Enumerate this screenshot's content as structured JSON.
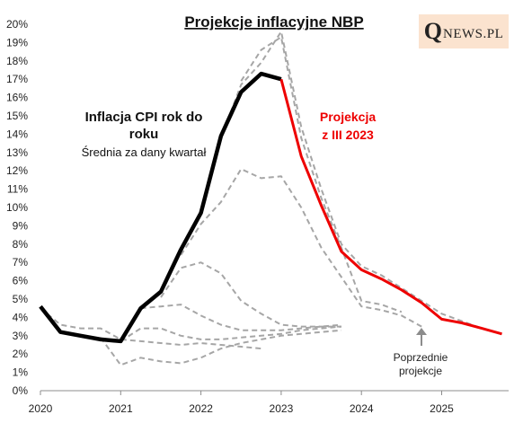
{
  "logo": {
    "q": "Q",
    "rest": "NEWS.PL"
  },
  "chart_data": {
    "type": "line",
    "title": "Projekcje inflacyjne NBP",
    "ylim": [
      0,
      20
    ],
    "xlim": [
      2020,
      2025.9
    ],
    "y_ticks": [
      "0%",
      "1%",
      "2%",
      "3%",
      "4%",
      "5%",
      "6%",
      "7%",
      "8%",
      "9%",
      "10%",
      "11%",
      "12%",
      "13%",
      "14%",
      "15%",
      "16%",
      "17%",
      "18%",
      "19%",
      "20%"
    ],
    "x_ticks": [
      "2020",
      "2021",
      "2022",
      "2023",
      "2024",
      "2025"
    ],
    "grid": false,
    "colors": {
      "actual": "#000000",
      "projection": "#ee0000",
      "previous": "#a6a6a6"
    },
    "annotations": {
      "actual_title": [
        "Inflacja CPI rok do",
        "roku"
      ],
      "actual_sub": "Średnia za dany kwartał",
      "projection_label": [
        "Projekcja",
        "z III 2023"
      ],
      "previous_label": [
        "Poprzednie",
        "projekcje"
      ]
    },
    "series": [
      {
        "name": "Inflacja CPI rok do roku",
        "style": "solid-black",
        "points": [
          [
            2020.0,
            4.6
          ],
          [
            2020.25,
            3.2
          ],
          [
            2020.5,
            3.0
          ],
          [
            2020.75,
            2.8
          ],
          [
            2021.0,
            2.7
          ],
          [
            2021.25,
            4.5
          ],
          [
            2021.5,
            5.4
          ],
          [
            2021.75,
            7.7
          ],
          [
            2022.0,
            9.7
          ],
          [
            2022.25,
            13.9
          ],
          [
            2022.5,
            16.3
          ],
          [
            2022.75,
            17.3
          ],
          [
            2023.0,
            17.0
          ]
        ]
      },
      {
        "name": "Projekcja z III 2023",
        "style": "solid-red",
        "points": [
          [
            2023.0,
            17.0
          ],
          [
            2023.25,
            12.8
          ],
          [
            2023.5,
            10.1
          ],
          [
            2023.75,
            7.6
          ],
          [
            2024.0,
            6.6
          ],
          [
            2024.25,
            6.1
          ],
          [
            2024.5,
            5.5
          ],
          [
            2024.75,
            4.8
          ],
          [
            2025.0,
            3.9
          ],
          [
            2025.25,
            3.7
          ],
          [
            2025.5,
            3.4
          ],
          [
            2025.75,
            3.1
          ]
        ]
      },
      {
        "name": "Poprzednie projekcje",
        "style": "dashed-gray",
        "lines": [
          [
            [
              2020.0,
              4.5
            ],
            [
              2020.25,
              3.6
            ],
            [
              2020.5,
              3.4
            ],
            [
              2020.75,
              3.4
            ],
            [
              2021.0,
              2.8
            ],
            [
              2021.25,
              2.7
            ],
            [
              2021.5,
              2.6
            ],
            [
              2021.75,
              2.5
            ],
            [
              2022.0,
              2.6
            ],
            [
              2022.25,
              2.5
            ],
            [
              2022.5,
              2.4
            ],
            [
              2022.75,
              2.3
            ]
          ],
          [
            [
              2020.75,
              2.9
            ],
            [
              2021.0,
              1.4
            ],
            [
              2021.25,
              1.8
            ],
            [
              2021.5,
              1.6
            ],
            [
              2021.75,
              1.5
            ],
            [
              2022.0,
              1.8
            ],
            [
              2022.25,
              2.3
            ],
            [
              2022.5,
              2.6
            ],
            [
              2022.75,
              2.8
            ],
            [
              2023.0,
              3.0
            ],
            [
              2023.25,
              3.1
            ],
            [
              2023.5,
              3.2
            ],
            [
              2023.75,
              3.3
            ]
          ],
          [
            [
              2021.0,
              2.7
            ],
            [
              2021.25,
              3.4
            ],
            [
              2021.5,
              3.4
            ],
            [
              2021.75,
              3.0
            ],
            [
              2022.0,
              2.8
            ],
            [
              2022.25,
              2.8
            ],
            [
              2022.5,
              2.9
            ],
            [
              2022.75,
              3.0
            ],
            [
              2023.0,
              3.1
            ],
            [
              2023.25,
              3.3
            ],
            [
              2023.5,
              3.4
            ],
            [
              2023.75,
              3.5
            ]
          ],
          [
            [
              2021.25,
              4.5
            ],
            [
              2021.5,
              4.6
            ],
            [
              2021.75,
              4.7
            ],
            [
              2022.0,
              4.1
            ],
            [
              2022.25,
              3.6
            ],
            [
              2022.5,
              3.3
            ],
            [
              2022.75,
              3.3
            ],
            [
              2023.0,
              3.3
            ],
            [
              2023.25,
              3.4
            ],
            [
              2023.5,
              3.5
            ],
            [
              2023.75,
              3.6
            ]
          ],
          [
            [
              2021.5,
              5.1
            ],
            [
              2021.75,
              6.7
            ],
            [
              2022.0,
              7.0
            ],
            [
              2022.25,
              6.4
            ],
            [
              2022.5,
              4.9
            ],
            [
              2022.75,
              4.2
            ],
            [
              2023.0,
              3.6
            ],
            [
              2023.25,
              3.5
            ],
            [
              2023.5,
              3.5
            ],
            [
              2023.75,
              3.5
            ]
          ],
          [
            [
              2021.75,
              7.4
            ],
            [
              2022.0,
              9.1
            ],
            [
              2022.25,
              10.3
            ],
            [
              2022.5,
              12.1
            ],
            [
              2022.75,
              11.6
            ],
            [
              2023.0,
              11.7
            ],
            [
              2023.25,
              10.0
            ],
            [
              2023.5,
              7.8
            ],
            [
              2023.75,
              6.2
            ],
            [
              2024.0,
              4.6
            ],
            [
              2024.25,
              4.4
            ],
            [
              2024.5,
              4.1
            ],
            [
              2024.75,
              3.5
            ]
          ],
          [
            [
              2022.25,
              13.8
            ],
            [
              2022.5,
              16.7
            ],
            [
              2022.75,
              17.9
            ],
            [
              2023.0,
              19.6
            ],
            [
              2023.25,
              14.4
            ],
            [
              2023.5,
              11.0
            ],
            [
              2023.75,
              8.0
            ],
            [
              2024.0,
              6.8
            ],
            [
              2024.25,
              6.3
            ],
            [
              2024.5,
              5.6
            ],
            [
              2024.75,
              4.9
            ],
            [
              2025.0,
              4.2
            ],
            [
              2025.25,
              3.8
            ],
            [
              2025.5,
              3.4
            ]
          ],
          [
            [
              2022.5,
              16.9
            ],
            [
              2022.75,
              18.6
            ],
            [
              2023.0,
              19.3
            ],
            [
              2023.25,
              13.8
            ],
            [
              2023.5,
              10.5
            ],
            [
              2023.75,
              7.8
            ],
            [
              2024.0,
              4.9
            ],
            [
              2024.25,
              4.7
            ],
            [
              2024.5,
              4.3
            ]
          ]
        ]
      }
    ]
  }
}
